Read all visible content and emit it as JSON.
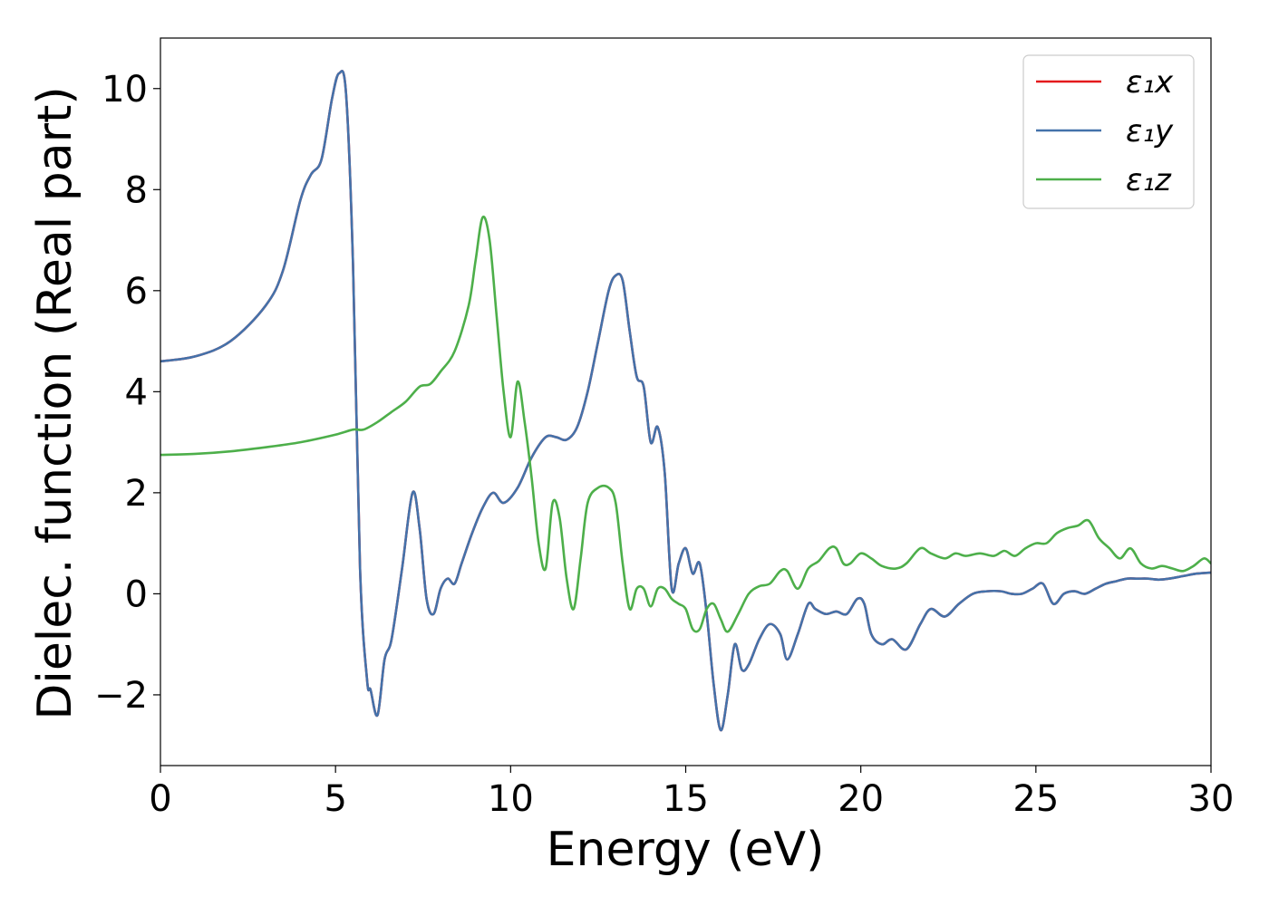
{
  "chart_data": {
    "type": "line",
    "xlabel": "Energy (eV)",
    "ylabel": "Dielec. function (Real part)",
    "xlim": [
      0,
      30
    ],
    "ylim": [
      -3.4,
      11.0
    ],
    "xticks": [
      0,
      5,
      10,
      15,
      20,
      25,
      30
    ],
    "xtick_labels": [
      "0",
      "5",
      "10",
      "15",
      "20",
      "25",
      "30"
    ],
    "yticks": [
      -2,
      0,
      2,
      4,
      6,
      8,
      10
    ],
    "ytick_labels": [
      "−2",
      "0",
      "2",
      "4",
      "6",
      "8",
      "10"
    ],
    "grid": false,
    "legend_position": "top-right",
    "series": [
      {
        "name": "ε₁x",
        "color": "#e41a1c",
        "x": [
          0,
          1,
          2,
          3,
          3.5,
          4,
          4.3,
          4.6,
          4.9,
          5.1,
          5.3,
          5.5,
          5.7,
          5.9,
          6.0,
          6.2,
          6.4,
          6.6,
          6.9,
          7.2,
          7.4,
          7.6,
          7.8,
          8.0,
          8.2,
          8.4,
          8.6,
          8.9,
          9.2,
          9.5,
          9.8,
          10.2,
          10.6,
          11.0,
          11.3,
          11.6,
          11.9,
          12.2,
          12.5,
          12.8,
          13.0,
          13.2,
          13.4,
          13.6,
          13.8,
          14.0,
          14.2,
          14.4,
          14.6,
          14.8,
          15.0,
          15.2,
          15.4,
          15.6,
          15.8,
          16.0,
          16.2,
          16.4,
          16.6,
          16.8,
          17.1,
          17.4,
          17.7,
          17.9,
          18.2,
          18.5,
          18.7,
          19.0,
          19.3,
          19.6,
          19.9,
          20.1,
          20.3,
          20.6,
          20.9,
          21.3,
          21.7,
          22.0,
          22.4,
          22.8,
          23.2,
          23.6,
          24.0,
          24.3,
          24.6,
          24.9,
          25.2,
          25.5,
          25.8,
          26.1,
          26.4,
          26.7,
          27.0,
          27.3,
          27.6,
          27.9,
          28.2,
          28.5,
          28.8,
          29.2,
          29.6,
          30.0
        ],
        "values": [
          4.6,
          4.7,
          5.0,
          5.7,
          6.4,
          7.8,
          8.3,
          8.6,
          9.8,
          10.3,
          9.9,
          6.5,
          0.5,
          -1.7,
          -1.9,
          -2.4,
          -1.3,
          -0.9,
          0.5,
          2.0,
          1.3,
          -0.1,
          -0.4,
          0.1,
          0.3,
          0.2,
          0.6,
          1.2,
          1.7,
          2.0,
          1.8,
          2.1,
          2.7,
          3.1,
          3.1,
          3.05,
          3.3,
          4.0,
          5.0,
          6.0,
          6.3,
          6.2,
          5.2,
          4.3,
          4.1,
          3.0,
          3.3,
          2.4,
          0.1,
          0.6,
          0.9,
          0.4,
          0.6,
          -0.4,
          -1.8,
          -2.7,
          -2.0,
          -1.0,
          -1.5,
          -1.4,
          -0.9,
          -0.6,
          -0.8,
          -1.3,
          -0.8,
          -0.2,
          -0.3,
          -0.4,
          -0.35,
          -0.4,
          -0.1,
          -0.2,
          -0.8,
          -1.0,
          -0.9,
          -1.1,
          -0.6,
          -0.3,
          -0.45,
          -0.2,
          0.0,
          0.05,
          0.05,
          0.0,
          0.0,
          0.1,
          0.2,
          -0.2,
          0.0,
          0.05,
          0.0,
          0.1,
          0.2,
          0.25,
          0.3,
          0.3,
          0.3,
          0.28,
          0.3,
          0.35,
          0.4,
          0.42
        ]
      },
      {
        "name": "ε₁y",
        "color": "#4472aa",
        "x": [
          0,
          1,
          2,
          3,
          3.5,
          4,
          4.3,
          4.6,
          4.9,
          5.1,
          5.3,
          5.5,
          5.7,
          5.9,
          6.0,
          6.2,
          6.4,
          6.6,
          6.9,
          7.2,
          7.4,
          7.6,
          7.8,
          8.0,
          8.2,
          8.4,
          8.6,
          8.9,
          9.2,
          9.5,
          9.8,
          10.2,
          10.6,
          11.0,
          11.3,
          11.6,
          11.9,
          12.2,
          12.5,
          12.8,
          13.0,
          13.2,
          13.4,
          13.6,
          13.8,
          14.0,
          14.2,
          14.4,
          14.6,
          14.8,
          15.0,
          15.2,
          15.4,
          15.6,
          15.8,
          16.0,
          16.2,
          16.4,
          16.6,
          16.8,
          17.1,
          17.4,
          17.7,
          17.9,
          18.2,
          18.5,
          18.7,
          19.0,
          19.3,
          19.6,
          19.9,
          20.1,
          20.3,
          20.6,
          20.9,
          21.3,
          21.7,
          22.0,
          22.4,
          22.8,
          23.2,
          23.6,
          24.0,
          24.3,
          24.6,
          24.9,
          25.2,
          25.5,
          25.8,
          26.1,
          26.4,
          26.7,
          27.0,
          27.3,
          27.6,
          27.9,
          28.2,
          28.5,
          28.8,
          29.2,
          29.6,
          30.0
        ],
        "values": [
          4.6,
          4.7,
          5.0,
          5.7,
          6.4,
          7.8,
          8.3,
          8.6,
          9.8,
          10.3,
          9.9,
          6.5,
          0.5,
          -1.7,
          -1.9,
          -2.4,
          -1.3,
          -0.9,
          0.5,
          2.0,
          1.3,
          -0.1,
          -0.4,
          0.1,
          0.3,
          0.2,
          0.6,
          1.2,
          1.7,
          2.0,
          1.8,
          2.1,
          2.7,
          3.1,
          3.1,
          3.05,
          3.3,
          4.0,
          5.0,
          6.0,
          6.3,
          6.2,
          5.2,
          4.3,
          4.1,
          3.0,
          3.3,
          2.4,
          0.1,
          0.6,
          0.9,
          0.4,
          0.6,
          -0.4,
          -1.8,
          -2.7,
          -2.0,
          -1.0,
          -1.5,
          -1.4,
          -0.9,
          -0.6,
          -0.8,
          -1.3,
          -0.8,
          -0.2,
          -0.3,
          -0.4,
          -0.35,
          -0.4,
          -0.1,
          -0.2,
          -0.8,
          -1.0,
          -0.9,
          -1.1,
          -0.6,
          -0.3,
          -0.45,
          -0.2,
          0.0,
          0.05,
          0.05,
          0.0,
          0.0,
          0.1,
          0.2,
          -0.2,
          0.0,
          0.05,
          0.0,
          0.1,
          0.2,
          0.25,
          0.3,
          0.3,
          0.3,
          0.28,
          0.3,
          0.35,
          0.4,
          0.42
        ]
      },
      {
        "name": "ε₁z",
        "color": "#4daf4a",
        "x": [
          0,
          1,
          2,
          3,
          4,
          5,
          5.5,
          5.8,
          6.2,
          6.6,
          7.0,
          7.4,
          7.7,
          8.0,
          8.4,
          8.8,
          9.0,
          9.2,
          9.4,
          9.6,
          9.8,
          10.0,
          10.2,
          10.4,
          10.6,
          10.8,
          11.0,
          11.2,
          11.4,
          11.6,
          11.8,
          12.0,
          12.2,
          12.5,
          12.8,
          13.0,
          13.2,
          13.4,
          13.6,
          13.8,
          14.0,
          14.2,
          14.4,
          14.6,
          14.8,
          15.0,
          15.2,
          15.4,
          15.6,
          15.8,
          16.0,
          16.2,
          16.5,
          16.8,
          17.1,
          17.4,
          17.7,
          17.9,
          18.2,
          18.5,
          18.8,
          19.1,
          19.3,
          19.5,
          19.7,
          20.0,
          20.3,
          20.6,
          21.0,
          21.3,
          21.7,
          22.0,
          22.4,
          22.7,
          23.0,
          23.4,
          23.8,
          24.1,
          24.4,
          24.7,
          25.0,
          25.3,
          25.6,
          25.9,
          26.2,
          26.5,
          26.8,
          27.1,
          27.4,
          27.7,
          28.0,
          28.3,
          28.6,
          28.9,
          29.2,
          29.5,
          29.8,
          30.0
        ],
        "values": [
          2.75,
          2.77,
          2.82,
          2.9,
          3.0,
          3.15,
          3.25,
          3.25,
          3.4,
          3.6,
          3.8,
          4.1,
          4.15,
          4.4,
          4.8,
          5.7,
          6.6,
          7.45,
          7.0,
          5.5,
          4.0,
          3.1,
          4.2,
          3.4,
          2.3,
          1.0,
          0.5,
          1.8,
          1.5,
          0.3,
          -0.3,
          0.7,
          1.8,
          2.1,
          2.1,
          1.8,
          0.6,
          -0.3,
          0.1,
          0.1,
          -0.25,
          0.1,
          0.1,
          -0.1,
          -0.2,
          -0.3,
          -0.7,
          -0.7,
          -0.3,
          -0.2,
          -0.5,
          -0.75,
          -0.4,
          0.0,
          0.15,
          0.2,
          0.45,
          0.45,
          0.1,
          0.5,
          0.65,
          0.9,
          0.9,
          0.6,
          0.6,
          0.8,
          0.7,
          0.55,
          0.5,
          0.6,
          0.9,
          0.8,
          0.7,
          0.8,
          0.75,
          0.8,
          0.75,
          0.85,
          0.75,
          0.9,
          1.0,
          1.0,
          1.2,
          1.3,
          1.35,
          1.45,
          1.1,
          0.9,
          0.7,
          0.9,
          0.6,
          0.5,
          0.55,
          0.5,
          0.45,
          0.55,
          0.7,
          0.6
        ]
      }
    ]
  }
}
